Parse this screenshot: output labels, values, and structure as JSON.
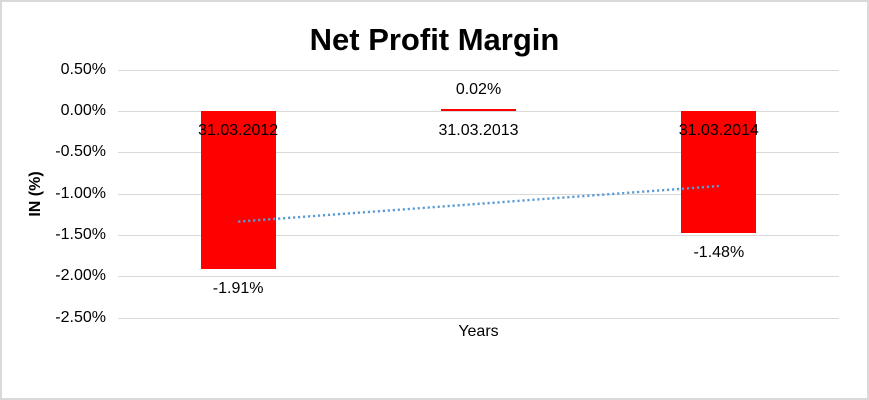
{
  "chart_data": {
    "type": "bar",
    "title": "Net Profit Margin",
    "xlabel": "Years",
    "ylabel": "IN (%)",
    "categories": [
      "31.03.2012",
      "31.03.2013",
      "31.03.2014"
    ],
    "values": [
      -1.91,
      0.02,
      -1.48
    ],
    "data_labels": [
      "-1.91%",
      "0.02%",
      "-1.48%"
    ],
    "y_ticks": [
      {
        "label": "0.50%",
        "value": 0.5
      },
      {
        "label": "0.00%",
        "value": 0.0
      },
      {
        "label": "-0.50%",
        "value": -0.5
      },
      {
        "label": "-1.00%",
        "value": -1.0
      },
      {
        "label": "-1.50%",
        "value": -1.5
      },
      {
        "label": "-2.00%",
        "value": -2.0
      },
      {
        "label": "-2.50%",
        "value": -2.5
      }
    ],
    "ylim": [
      -2.5,
      0.5
    ],
    "grid": true,
    "legend": "none",
    "bar_color": "#FF0000",
    "trendline": {
      "type": "linear",
      "style": "dotted",
      "color": "#5B9BD5",
      "start_pct": -1.34,
      "end_pct": -0.91
    }
  }
}
